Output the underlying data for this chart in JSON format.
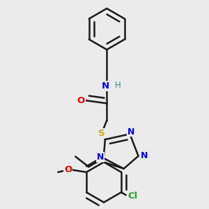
{
  "background_color": "#ebebeb",
  "bond_color": "#1a1a1a",
  "atom_colors": {
    "N": "#0000ee",
    "O": "#ee0000",
    "S": "#ccaa00",
    "Cl": "#22aa22",
    "H": "#448888",
    "C": "#1a1a1a"
  },
  "figsize": [
    3.0,
    3.0
  ],
  "dpi": 100
}
